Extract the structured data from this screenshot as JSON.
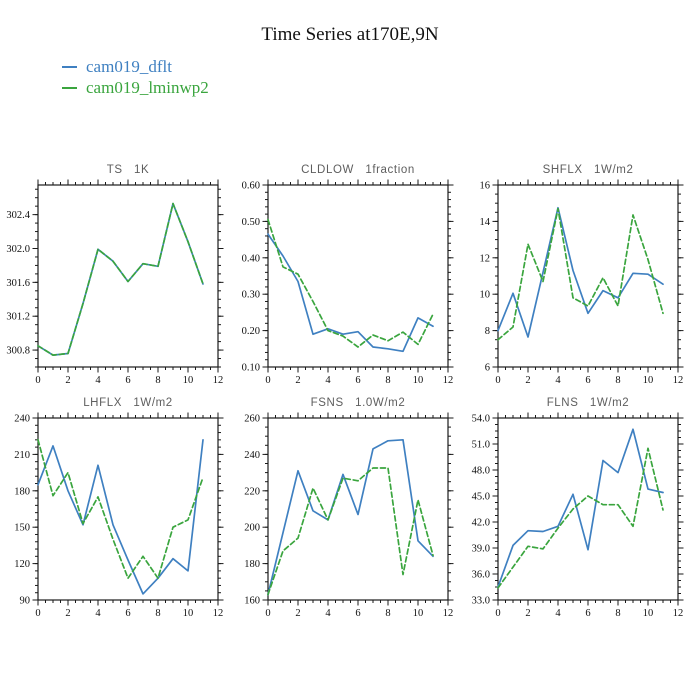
{
  "page": {
    "title": "Time Series at170E,9N"
  },
  "legend": {
    "items": [
      {
        "label": "cam019_dflt",
        "color": "#3f80c1"
      },
      {
        "label": "cam019_lminwp2",
        "color": "#3aa53e"
      }
    ]
  },
  "chart_data": [
    {
      "id": "ts",
      "type": "line",
      "title": "TS   1K",
      "x": [
        0,
        1,
        2,
        3,
        4,
        5,
        6,
        7,
        8,
        9,
        10,
        11
      ],
      "xlim": [
        0,
        12
      ],
      "xticks": [
        0,
        2,
        4,
        6,
        8,
        10,
        12
      ],
      "xtick_labels": [
        "0",
        "2",
        "4",
        "6",
        "8",
        "10",
        "12"
      ],
      "x_minor": 0.5,
      "ylim": [
        300.6,
        302.75
      ],
      "yticks": [
        300.8,
        301.2,
        301.6,
        302.0,
        302.4
      ],
      "ytick_labels": [
        "300.8",
        "301.2",
        "301.6",
        "302.0",
        "302.4"
      ],
      "y_minor": 0.1,
      "grid": false,
      "series": [
        {
          "name": "cam019_dflt",
          "color": "#3f80c1",
          "dashed": false,
          "values": [
            300.85,
            300.74,
            300.76,
            301.35,
            301.99,
            301.85,
            301.61,
            301.82,
            301.79,
            302.53,
            302.08,
            301.58
          ]
        },
        {
          "name": "cam019_lminwp2",
          "color": "#3aa53e",
          "dashed": true,
          "values": [
            300.85,
            300.74,
            300.76,
            301.35,
            301.99,
            301.85,
            301.61,
            301.82,
            301.79,
            302.53,
            302.08,
            301.58
          ]
        }
      ]
    },
    {
      "id": "cldlow",
      "type": "line",
      "title": "CLDLOW   1fraction",
      "x": [
        0,
        1,
        2,
        3,
        4,
        5,
        6,
        7,
        8,
        9,
        10,
        11
      ],
      "xlim": [
        0,
        12
      ],
      "xticks": [
        0,
        2,
        4,
        6,
        8,
        10,
        12
      ],
      "xtick_labels": [
        "0",
        "2",
        "4",
        "6",
        "8",
        "10",
        "12"
      ],
      "x_minor": 0.5,
      "ylim": [
        0.1,
        0.6
      ],
      "yticks": [
        0.1,
        0.2,
        0.3,
        0.4,
        0.5,
        0.6
      ],
      "ytick_labels": [
        "0.10",
        "0.20",
        "0.30",
        "0.40",
        "0.50",
        "0.60"
      ],
      "y_minor": 0.02,
      "grid": false,
      "series": [
        {
          "name": "cam019_dflt",
          "color": "#3f80c1",
          "dashed": false,
          "values": [
            0.465,
            0.405,
            0.335,
            0.19,
            0.205,
            0.19,
            0.197,
            0.155,
            0.15,
            0.143,
            0.235,
            0.212
          ]
        },
        {
          "name": "cam019_lminwp2",
          "color": "#3aa53e",
          "dashed": true,
          "values": [
            0.505,
            0.375,
            0.355,
            0.28,
            0.2,
            0.185,
            0.155,
            0.188,
            0.172,
            0.196,
            0.162,
            0.245
          ]
        }
      ]
    },
    {
      "id": "shflx",
      "type": "line",
      "title": "SHFLX   1W/m2",
      "x": [
        0,
        1,
        2,
        3,
        4,
        5,
        6,
        7,
        8,
        9,
        10,
        11
      ],
      "xlim": [
        0,
        12
      ],
      "xticks": [
        0,
        2,
        4,
        6,
        8,
        10,
        12
      ],
      "xtick_labels": [
        "0",
        "2",
        "4",
        "6",
        "8",
        "10",
        "12"
      ],
      "x_minor": 0.5,
      "ylim": [
        6,
        16
      ],
      "yticks": [
        6,
        8,
        10,
        12,
        14,
        16
      ],
      "ytick_labels": [
        "6",
        "8",
        "10",
        "12",
        "14",
        "16"
      ],
      "y_minor": 0.5,
      "grid": false,
      "series": [
        {
          "name": "cam019_dflt",
          "color": "#3f80c1",
          "dashed": false,
          "values": [
            8.0,
            10.05,
            7.65,
            11.2,
            14.75,
            11.3,
            8.95,
            10.2,
            9.8,
            11.15,
            11.1,
            10.55
          ]
        },
        {
          "name": "cam019_lminwp2",
          "color": "#3aa53e",
          "dashed": true,
          "values": [
            7.5,
            8.2,
            12.75,
            10.7,
            14.7,
            9.8,
            9.35,
            10.9,
            9.35,
            14.35,
            11.9,
            8.95
          ]
        }
      ]
    },
    {
      "id": "lhflx",
      "type": "line",
      "title": "LHFLX   1W/m2",
      "x": [
        0,
        1,
        2,
        3,
        4,
        5,
        6,
        7,
        8,
        9,
        10,
        11
      ],
      "xlim": [
        0,
        12
      ],
      "xticks": [
        0,
        2,
        4,
        6,
        8,
        10,
        12
      ],
      "xtick_labels": [
        "0",
        "2",
        "4",
        "6",
        "8",
        "10",
        "12"
      ],
      "x_minor": 0.5,
      "ylim": [
        90,
        240
      ],
      "yticks": [
        90,
        120,
        150,
        180,
        210,
        240
      ],
      "ytick_labels": [
        "90",
        "120",
        "150",
        "180",
        "210",
        "240"
      ],
      "y_minor": 6,
      "grid": false,
      "series": [
        {
          "name": "cam019_dflt",
          "color": "#3f80c1",
          "dashed": false,
          "values": [
            185,
            217,
            180,
            152,
            201,
            152,
            123,
            95,
            108,
            124,
            114,
            222
          ]
        },
        {
          "name": "cam019_lminwp2",
          "color": "#3aa53e",
          "dashed": true,
          "values": [
            222,
            176,
            195,
            153,
            175,
            140,
            108,
            126,
            108,
            150,
            156,
            191
          ]
        }
      ]
    },
    {
      "id": "fsns",
      "type": "line",
      "title": "FSNS   1.0W/m2",
      "x": [
        0,
        1,
        2,
        3,
        4,
        5,
        6,
        7,
        8,
        9,
        10,
        11
      ],
      "xlim": [
        0,
        12
      ],
      "xticks": [
        0,
        2,
        4,
        6,
        8,
        10,
        12
      ],
      "xtick_labels": [
        "0",
        "2",
        "4",
        "6",
        "8",
        "10",
        "12"
      ],
      "x_minor": 0.5,
      "ylim": [
        160,
        260
      ],
      "yticks": [
        160,
        180,
        200,
        220,
        240,
        260
      ],
      "ytick_labels": [
        "160",
        "180",
        "200",
        "220",
        "240",
        "260"
      ],
      "y_minor": 5,
      "grid": false,
      "series": [
        {
          "name": "cam019_dflt",
          "color": "#3f80c1",
          "dashed": false,
          "values": [
            163,
            197,
            231,
            209,
            204,
            229,
            207,
            243,
            247.5,
            248,
            192.5,
            184
          ]
        },
        {
          "name": "cam019_lminwp2",
          "color": "#3aa53e",
          "dashed": true,
          "values": [
            163,
            187,
            194,
            221.5,
            204,
            227,
            225.5,
            232.5,
            232.5,
            174,
            215,
            184.5
          ]
        }
      ]
    },
    {
      "id": "flns",
      "type": "line",
      "title": "FLNS   1W/m2",
      "x": [
        0,
        1,
        2,
        3,
        4,
        5,
        6,
        7,
        8,
        9,
        10,
        11
      ],
      "xlim": [
        0,
        12
      ],
      "xticks": [
        0,
        2,
        4,
        6,
        8,
        10,
        12
      ],
      "xtick_labels": [
        "0",
        "2",
        "4",
        "6",
        "8",
        "10",
        "12"
      ],
      "x_minor": 0.5,
      "ylim": [
        33,
        54
      ],
      "yticks": [
        33,
        36,
        39,
        42,
        45,
        48,
        51,
        54
      ],
      "ytick_labels": [
        "33.0",
        "36.0",
        "39.0",
        "42.0",
        "45.0",
        "48.0",
        "51.0",
        "54.0"
      ],
      "y_minor": 0.75,
      "grid": false,
      "series": [
        {
          "name": "cam019_dflt",
          "color": "#3f80c1",
          "dashed": false,
          "values": [
            34.5,
            39.3,
            41.0,
            40.9,
            41.5,
            45.2,
            38.8,
            49.1,
            47.7,
            52.7,
            45.8,
            45.4
          ]
        },
        {
          "name": "cam019_lminwp2",
          "color": "#3aa53e",
          "dashed": true,
          "values": [
            34.4,
            36.8,
            39.2,
            38.9,
            41.3,
            43.5,
            45.0,
            44.0,
            44.0,
            41.5,
            50.5,
            43.4
          ]
        }
      ]
    }
  ]
}
